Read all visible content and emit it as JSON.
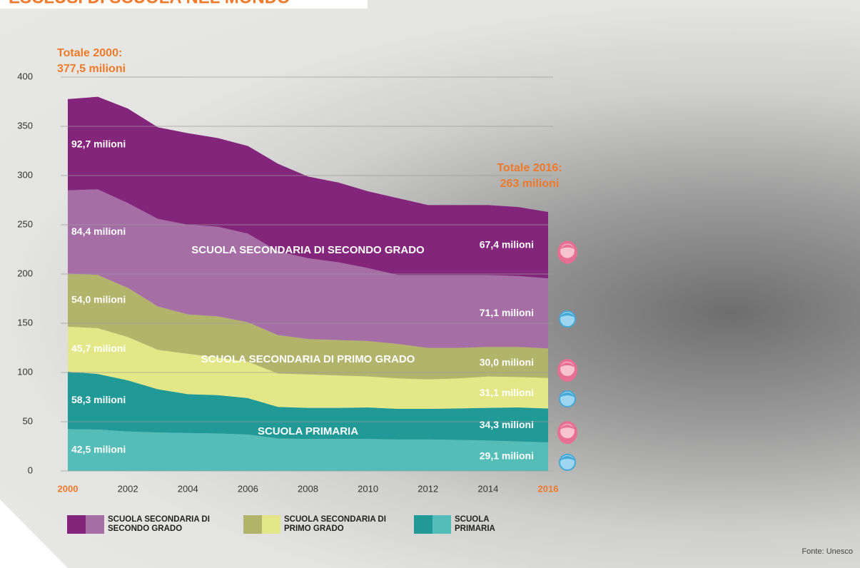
{
  "chart_data": {
    "type": "stacked_area",
    "title": "ESCLUSI DI SCUOLA NEL MONDO",
    "x": [
      2000,
      2001,
      2002,
      2003,
      2004,
      2005,
      2006,
      2007,
      2008,
      2009,
      2010,
      2011,
      2012,
      2013,
      2014,
      2015,
      2016
    ],
    "xlim": [
      2000,
      2016
    ],
    "xticks": [
      2000,
      2002,
      2004,
      2006,
      2008,
      2010,
      2012,
      2014,
      2016
    ],
    "ylim": [
      0,
      400
    ],
    "yticks": [
      0,
      50,
      100,
      150,
      200,
      250,
      300,
      350,
      400
    ],
    "grid": true,
    "series": [
      {
        "color": "#55bdb8",
        "icon": "boy",
        "values": [
          42.5,
          42,
          40,
          39,
          38.5,
          38,
          37,
          33,
          32.5,
          32.5,
          32.5,
          32,
          32,
          31.5,
          31,
          30,
          29.1
        ],
        "value_labels": [
          "42,5 milioni",
          null,
          null,
          null,
          null,
          null,
          null,
          null,
          null,
          null,
          null,
          null,
          null,
          null,
          null,
          null,
          "29,1 milioni"
        ]
      },
      {
        "color": "#219a97",
        "icon": "girl",
        "values": [
          58.3,
          56.5,
          52,
          44,
          39.5,
          39,
          37,
          32,
          31.5,
          31.5,
          32,
          31,
          31,
          32,
          33,
          34.5,
          34.3
        ],
        "value_labels": [
          "58,3 milioni",
          null,
          null,
          null,
          null,
          null,
          null,
          null,
          null,
          null,
          null,
          null,
          null,
          null,
          null,
          null,
          "34,3 milioni"
        ]
      },
      {
        "color": "#e4e788",
        "icon": "boy",
        "values": [
          45.7,
          46.5,
          44,
          40,
          41,
          38,
          37,
          34,
          34,
          33,
          31.5,
          31,
          30,
          30.5,
          32,
          31,
          31.1
        ],
        "value_labels": [
          "45,7 milioni",
          null,
          null,
          null,
          null,
          null,
          null,
          null,
          null,
          null,
          null,
          null,
          null,
          null,
          null,
          null,
          "31,1 milioni"
        ]
      },
      {
        "color": "#b2b46c",
        "icon": "girl",
        "values": [
          54.0,
          54,
          50,
          44,
          40,
          42,
          40,
          39,
          36,
          36,
          36,
          35,
          32,
          31,
          30,
          30.5,
          30.0
        ],
        "value_labels": [
          "54,0 milioni",
          null,
          null,
          null,
          null,
          null,
          null,
          null,
          null,
          null,
          null,
          null,
          null,
          null,
          null,
          null,
          "30,0 milioni"
        ]
      },
      {
        "color": "#a56fa6",
        "icon": "boy",
        "values": [
          84.4,
          87,
          86,
          89,
          91,
          91,
          90,
          85,
          82,
          79,
          74,
          70,
          74,
          74,
          73,
          72,
          71.1
        ],
        "value_labels": [
          "84,4 milioni",
          null,
          null,
          null,
          null,
          null,
          null,
          null,
          null,
          null,
          null,
          null,
          null,
          null,
          null,
          null,
          "71,1 milioni"
        ]
      },
      {
        "color": "#83257b",
        "icon": "girl",
        "values": [
          92.7,
          94,
          96,
          93,
          93,
          90,
          89,
          89,
          83,
          81,
          78,
          78,
          71,
          71,
          71,
          70,
          67.4
        ],
        "value_labels": [
          "92,7 milioni",
          null,
          null,
          null,
          null,
          null,
          null,
          null,
          null,
          null,
          null,
          null,
          null,
          null,
          null,
          null,
          "67,4 milioni"
        ]
      }
    ],
    "area_labels": [
      {
        "text": "SCUOLA PRIMARIA",
        "x": 2008,
        "y": 40
      },
      {
        "text": "SCUOLA SECONDARIA DI PRIMO GRADO",
        "x": 2008,
        "y": 113
      },
      {
        "text": "SCUOLA SECONDARIA DI SECONDO GRADO",
        "x": 2008,
        "y": 224
      }
    ],
    "totals": [
      {
        "lines": [
          "Totale 2000:",
          "377,5 milioni"
        ],
        "value": 377.5
      },
      {
        "lines": [
          "Totale 2016:",
          "263 milioni"
        ],
        "value": 263
      }
    ],
    "legend": [
      {
        "label": "SCUOLA SECONDARIA DI SECONDO GRADO",
        "colors": [
          "#83257b",
          "#a56fa6"
        ]
      },
      {
        "label": "SCUOLA SECONDARIA DI PRIMO GRADO",
        "colors": [
          "#b2b46c",
          "#e4e788"
        ]
      },
      {
        "label": "SCUOLA PRIMARIA",
        "colors": [
          "#219a97",
          "#55bdb8"
        ]
      }
    ],
    "source": "Fonte: Unesco"
  }
}
